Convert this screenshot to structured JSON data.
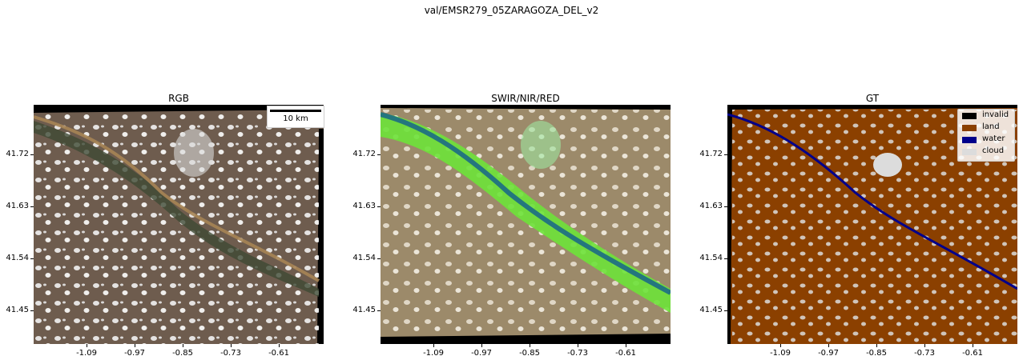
{
  "suptitle": "val/EMSR279_05ZARAGOZA_DEL_v2",
  "panels": [
    {
      "title": "RGB"
    },
    {
      "title": "SWIR/NIR/RED"
    },
    {
      "title": "GT"
    }
  ],
  "y_ticks": [
    "41.72",
    "41.63",
    "41.54",
    "41.45"
  ],
  "x_ticks": [
    "-1.09",
    "-0.97",
    "-0.85",
    "-0.73",
    "-0.61"
  ],
  "scalebar": {
    "label": "10 km"
  },
  "legend": [
    {
      "label": "invalid",
      "color": "#000000"
    },
    {
      "label": "land",
      "color": "#8B4000"
    },
    {
      "label": "water",
      "color": "#00008B"
    },
    {
      "label": "cloud",
      "color": "#DCDCDC"
    }
  ]
}
